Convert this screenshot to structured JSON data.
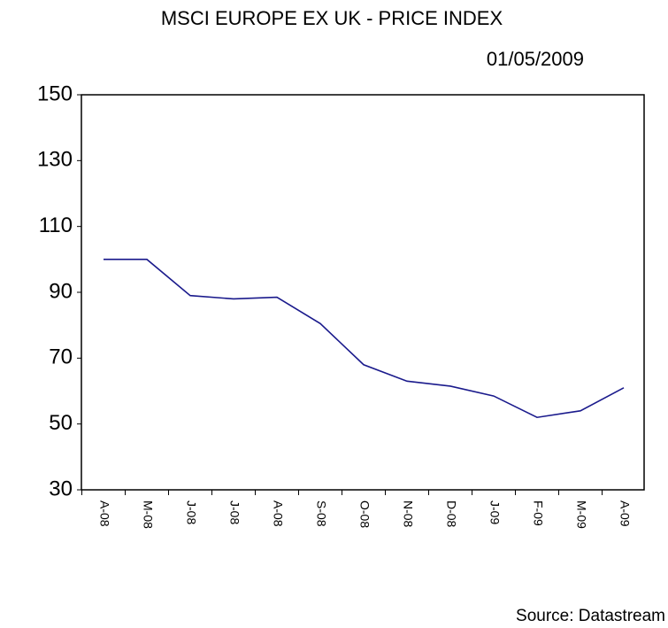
{
  "chart_data": {
    "type": "line",
    "title": "MSCI EUROPE EX UK - PRICE INDEX",
    "subtitle": "01/05/2009",
    "source": "Source: Datastream",
    "categories": [
      "A-08",
      "M-08",
      "J-08",
      "J-08",
      "A-08",
      "S-08",
      "O-08",
      "N-08",
      "D-08",
      "J-09",
      "F-09",
      "M-09",
      "A-09"
    ],
    "series": [
      {
        "color": "#1a1a8c",
        "values": [
          100,
          100,
          89,
          88,
          88.5,
          80.5,
          68,
          63,
          61.5,
          58.5,
          52,
          54,
          61
        ]
      }
    ],
    "ylim": [
      30,
      150
    ],
    "yticks": [
      30,
      50,
      70,
      90,
      110,
      130,
      150
    ],
    "grid": false
  }
}
